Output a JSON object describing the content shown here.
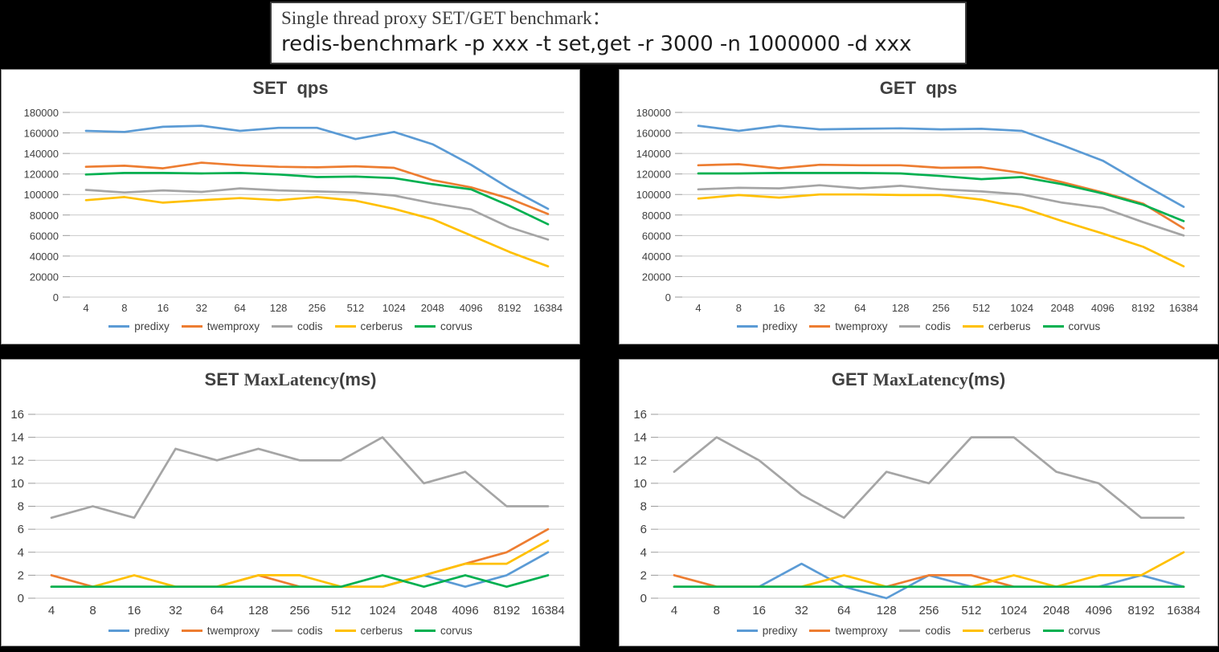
{
  "header": {
    "title_line1": "Single thread proxy SET/GET benchmark：",
    "title_line2": "redis-benchmark -p xxx -t set,get -r 3000 -n 1000000 -d xxx"
  },
  "colors": {
    "predixy": "#5B9BD5",
    "twemproxy": "#ED7D31",
    "codis": "#A5A5A5",
    "cerberus": "#FFC000",
    "corvus": "#00B050",
    "gridline": "#C9C9C9",
    "axis_label": "#404040",
    "title_text": "#404040"
  },
  "legend_labels": [
    "predixy",
    "twemproxy",
    "codis",
    "cerberus",
    "corvus"
  ],
  "chart_data": [
    {
      "id": "set-qps",
      "type": "line",
      "title": {
        "lead": "SET",
        "mid": "",
        "tail": "qps"
      },
      "categories": [
        "4",
        "8",
        "16",
        "32",
        "64",
        "128",
        "256",
        "512",
        "1024",
        "2048",
        "4096",
        "8192",
        "16384"
      ],
      "y_ticks": [
        "180000",
        "160000",
        "140000",
        "120000",
        "100000",
        "80000",
        "60000",
        "40000",
        "20000",
        "0"
      ],
      "ylim": [
        0,
        180000
      ],
      "ystep": 20000,
      "grid": true,
      "legend_position": "bottom",
      "series": [
        {
          "name": "predixy",
          "values": [
            162000,
            161000,
            166000,
            167000,
            162000,
            165000,
            165000,
            154000,
            161000,
            149000,
            129000,
            106000,
            86000
          ]
        },
        {
          "name": "twemproxy",
          "values": [
            127000,
            128000,
            125500,
            131000,
            128500,
            127000,
            126500,
            127500,
            126000,
            114000,
            107000,
            96000,
            81000
          ]
        },
        {
          "name": "codis",
          "values": [
            104500,
            102000,
            104000,
            102500,
            106000,
            104000,
            103000,
            102000,
            99000,
            91500,
            85500,
            68000,
            56000
          ]
        },
        {
          "name": "cerberus",
          "values": [
            94500,
            97500,
            92000,
            94500,
            96500,
            94500,
            97500,
            94000,
            86000,
            76000,
            60000,
            44000,
            30000
          ]
        },
        {
          "name": "corvus",
          "values": [
            119500,
            121000,
            121000,
            120500,
            121000,
            119500,
            117000,
            117500,
            116000,
            110000,
            105000,
            89000,
            71000
          ]
        }
      ]
    },
    {
      "id": "get-qps",
      "type": "line",
      "title": {
        "lead": "GET",
        "mid": "",
        "tail": "qps"
      },
      "categories": [
        "4",
        "8",
        "16",
        "32",
        "64",
        "128",
        "256",
        "512",
        "1024",
        "2048",
        "4096",
        "8192",
        "16384"
      ],
      "y_ticks": [
        "180000",
        "160000",
        "140000",
        "120000",
        "100000",
        "80000",
        "60000",
        "40000",
        "20000",
        "0"
      ],
      "ylim": [
        0,
        180000
      ],
      "ystep": 20000,
      "grid": true,
      "legend_position": "bottom",
      "series": [
        {
          "name": "predixy",
          "values": [
            167000,
            162000,
            167000,
            163500,
            164000,
            164500,
            163500,
            164000,
            162000,
            148000,
            133000,
            110000,
            88000
          ]
        },
        {
          "name": "twemproxy",
          "values": [
            128500,
            129500,
            125500,
            129000,
            128500,
            128500,
            126000,
            126500,
            121000,
            112000,
            102000,
            91000,
            67000
          ]
        },
        {
          "name": "codis",
          "values": [
            105000,
            106500,
            106000,
            109000,
            106000,
            108500,
            105000,
            103000,
            100000,
            92000,
            87000,
            73000,
            60000
          ]
        },
        {
          "name": "cerberus",
          "values": [
            96000,
            99500,
            97000,
            100000,
            100000,
            99500,
            99500,
            95000,
            87000,
            74000,
            62000,
            49000,
            30000
          ]
        },
        {
          "name": "corvus",
          "values": [
            120500,
            120500,
            121000,
            121000,
            121000,
            120500,
            118000,
            115000,
            117000,
            110000,
            101000,
            90000,
            74000
          ]
        }
      ]
    },
    {
      "id": "set-latency",
      "type": "line",
      "title": {
        "lead": "SET",
        "mid": "MaxLatency",
        "tail": "(ms)"
      },
      "categories": [
        "4",
        "8",
        "16",
        "32",
        "64",
        "128",
        "256",
        "512",
        "1024",
        "2048",
        "4096",
        "8192",
        "16384"
      ],
      "y_ticks": [
        "16",
        "14",
        "12",
        "10",
        "8",
        "6",
        "4",
        "2",
        "0"
      ],
      "ylim": [
        0,
        16
      ],
      "ystep": 2,
      "grid": true,
      "legend_position": "bottom",
      "series": [
        {
          "name": "predixy",
          "values": [
            1,
            1,
            1,
            1,
            1,
            1,
            1,
            1,
            1,
            2,
            1,
            2,
            4
          ]
        },
        {
          "name": "twemproxy",
          "values": [
            2,
            1,
            1,
            1,
            1,
            2,
            1,
            1,
            1,
            2,
            3,
            4,
            6
          ]
        },
        {
          "name": "codis",
          "values": [
            7,
            8,
            7,
            13,
            12,
            13,
            12,
            12,
            14,
            10,
            11,
            8,
            8
          ]
        },
        {
          "name": "cerberus",
          "values": [
            1,
            1,
            2,
            1,
            1,
            2,
            2,
            1,
            1,
            2,
            3,
            3,
            5
          ]
        },
        {
          "name": "corvus",
          "values": [
            1,
            1,
            1,
            1,
            1,
            1,
            1,
            1,
            2,
            1,
            2,
            1,
            2
          ]
        }
      ]
    },
    {
      "id": "get-latency",
      "type": "line",
      "title": {
        "lead": "GET",
        "mid": "MaxLatency",
        "tail": "(ms)"
      },
      "categories": [
        "4",
        "8",
        "16",
        "32",
        "64",
        "128",
        "256",
        "512",
        "1024",
        "2048",
        "4096",
        "8192",
        "16384"
      ],
      "y_ticks": [
        "16",
        "14",
        "12",
        "10",
        "8",
        "6",
        "4",
        "2",
        "0"
      ],
      "ylim": [
        0,
        16
      ],
      "ystep": 2,
      "grid": true,
      "legend_position": "bottom",
      "series": [
        {
          "name": "predixy",
          "values": [
            1,
            1,
            1,
            3,
            1,
            0,
            2,
            1,
            1,
            1,
            1,
            2,
            1
          ]
        },
        {
          "name": "twemproxy",
          "values": [
            2,
            1,
            1,
            1,
            1,
            1,
            2,
            2,
            1,
            1,
            1,
            1,
            1
          ]
        },
        {
          "name": "codis",
          "values": [
            11,
            14,
            12,
            9,
            7,
            11,
            10,
            14,
            14,
            11,
            10,
            7,
            7
          ]
        },
        {
          "name": "cerberus",
          "values": [
            1,
            1,
            1,
            1,
            2,
            1,
            1,
            1,
            2,
            1,
            2,
            2,
            4
          ]
        },
        {
          "name": "corvus",
          "values": [
            1,
            1,
            1,
            1,
            1,
            1,
            1,
            1,
            1,
            1,
            1,
            1,
            1
          ]
        }
      ]
    }
  ]
}
